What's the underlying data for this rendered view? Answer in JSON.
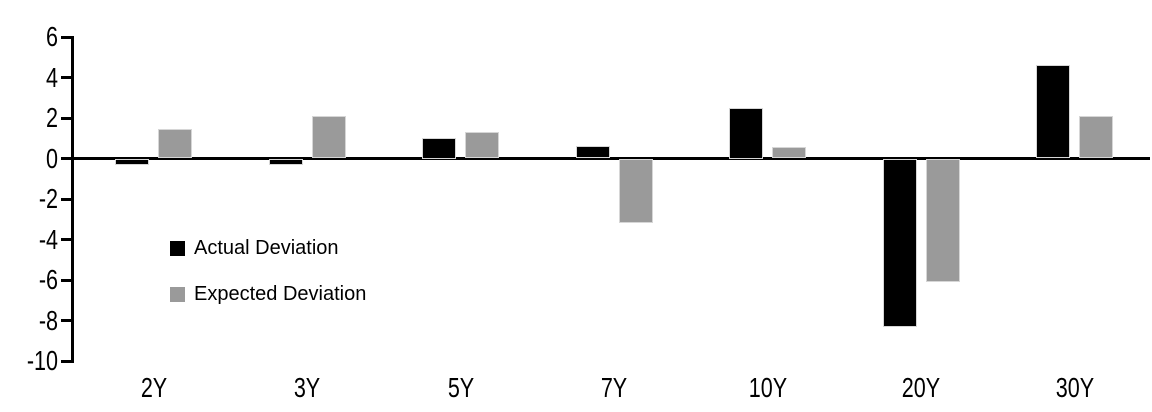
{
  "chart_data": {
    "type": "bar",
    "title": "",
    "xlabel": "",
    "ylabel": "",
    "categories": [
      "2Y",
      "3Y",
      "5Y",
      "7Y",
      "10Y",
      "20Y",
      "30Y"
    ],
    "series": [
      {
        "name": "Actual Deviation",
        "color": "#000000",
        "values": [
          -0.3,
          -0.3,
          1.0,
          0.6,
          2.5,
          -8.3,
          4.6
        ]
      },
      {
        "name": "Expected Deviation",
        "color": "#9A9A9A",
        "values": [
          1.45,
          2.1,
          1.3,
          -3.2,
          0.55,
          -6.1,
          2.1
        ]
      }
    ],
    "ylim": [
      -10,
      6
    ],
    "yticks": [
      6,
      4,
      2,
      0,
      -2,
      -4,
      -6,
      -8,
      -10
    ],
    "grid": false,
    "legend_position": "inside-left",
    "axis_color": "#000000",
    "background": "#FFFFFF"
  }
}
